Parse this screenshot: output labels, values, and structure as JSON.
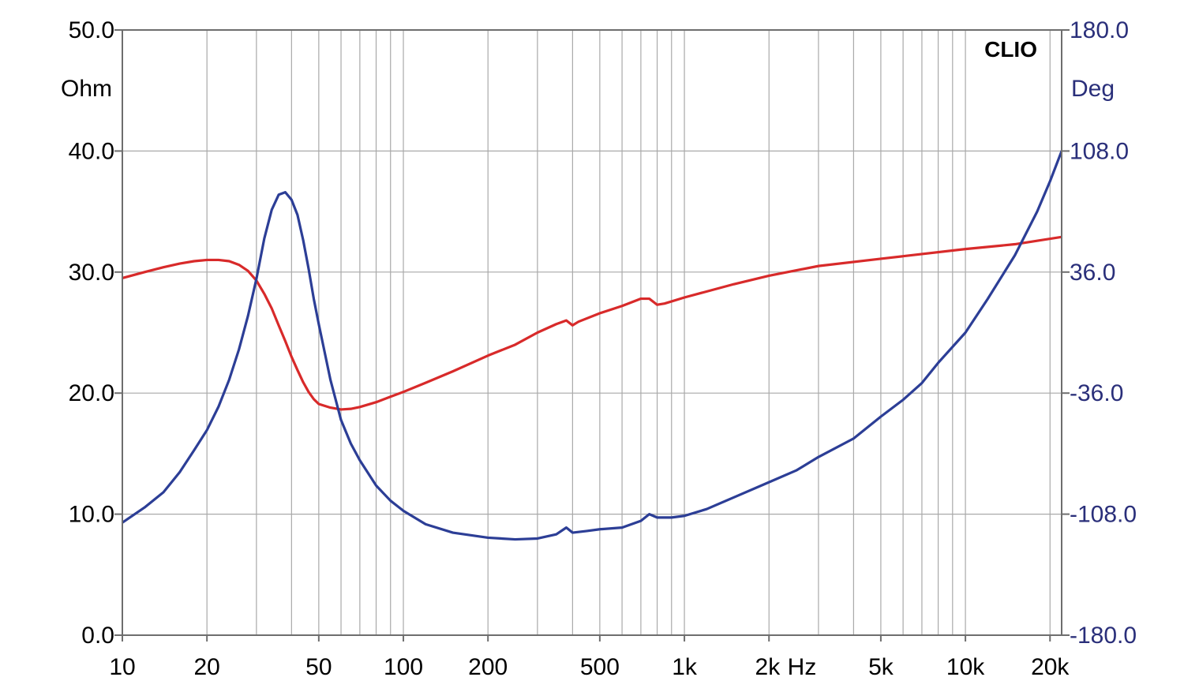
{
  "chart_data": {
    "type": "line",
    "brand_label": "CLIO",
    "x_scale": "log",
    "xlim": [
      10,
      22000
    ],
    "x_major_ticks": [
      10,
      20,
      50,
      100,
      200,
      500,
      1000,
      2000,
      5000,
      10000,
      20000
    ],
    "x_tick_labels": [
      "10",
      "20",
      "50",
      "100",
      "200",
      "500",
      "1k",
      "2k",
      "5k",
      "10k",
      "20k"
    ],
    "x_unit_label": "Hz",
    "y_left": {
      "unit_label": "Ohm",
      "lim": [
        0,
        50
      ],
      "ticks": [
        0,
        10,
        20,
        30,
        40,
        50
      ],
      "tick_labels": [
        "0.0",
        "10.0",
        "20.0",
        "30.0",
        "40.0",
        "50.0"
      ],
      "color": "#000000"
    },
    "y_right": {
      "unit_label": "Deg",
      "lim": [
        -180,
        180
      ],
      "ticks": [
        -180,
        -108,
        -36,
        36,
        108,
        180
      ],
      "tick_labels": [
        "-180.0",
        "-108.0",
        "-36.0",
        "36.0",
        "108.0",
        "180.0"
      ],
      "color": "#2a2f7a"
    },
    "grid": true,
    "series": [
      {
        "axis": "left",
        "color": "#d82a2a",
        "points": [
          [
            10,
            29.5
          ],
          [
            12,
            30.0
          ],
          [
            14,
            30.4
          ],
          [
            16,
            30.7
          ],
          [
            18,
            30.9
          ],
          [
            20,
            31.0
          ],
          [
            22,
            31.0
          ],
          [
            24,
            30.9
          ],
          [
            26,
            30.6
          ],
          [
            28,
            30.1
          ],
          [
            30,
            29.3
          ],
          [
            32,
            28.2
          ],
          [
            34,
            27.0
          ],
          [
            36,
            25.6
          ],
          [
            38,
            24.3
          ],
          [
            40,
            23.0
          ],
          [
            42,
            21.9
          ],
          [
            44,
            20.9
          ],
          [
            46,
            20.1
          ],
          [
            48,
            19.5
          ],
          [
            50,
            19.1
          ],
          [
            55,
            18.8
          ],
          [
            60,
            18.65
          ],
          [
            65,
            18.7
          ],
          [
            70,
            18.85
          ],
          [
            80,
            19.25
          ],
          [
            90,
            19.7
          ],
          [
            100,
            20.1
          ],
          [
            120,
            20.85
          ],
          [
            150,
            21.8
          ],
          [
            200,
            23.1
          ],
          [
            250,
            24.0
          ],
          [
            300,
            25.0
          ],
          [
            350,
            25.7
          ],
          [
            380,
            26.0
          ],
          [
            400,
            25.6
          ],
          [
            420,
            25.9
          ],
          [
            500,
            26.6
          ],
          [
            600,
            27.2
          ],
          [
            700,
            27.8
          ],
          [
            750,
            27.8
          ],
          [
            800,
            27.3
          ],
          [
            850,
            27.4
          ],
          [
            1000,
            27.9
          ],
          [
            1500,
            29.0
          ],
          [
            2000,
            29.7
          ],
          [
            3000,
            30.5
          ],
          [
            5000,
            31.1
          ],
          [
            10000,
            31.9
          ],
          [
            15000,
            32.3
          ],
          [
            22000,
            32.9
          ]
        ]
      },
      {
        "axis": "right",
        "color": "#2c3e96",
        "points": [
          [
            10,
            -113
          ],
          [
            12,
            -104
          ],
          [
            14,
            -95
          ],
          [
            16,
            -83
          ],
          [
            18,
            -70
          ],
          [
            20,
            -58
          ],
          [
            22,
            -44
          ],
          [
            24,
            -28
          ],
          [
            26,
            -10
          ],
          [
            28,
            10
          ],
          [
            30,
            32
          ],
          [
            32,
            56
          ],
          [
            34,
            73
          ],
          [
            36,
            82
          ],
          [
            38,
            83.5
          ],
          [
            40,
            79
          ],
          [
            42,
            70
          ],
          [
            44,
            55
          ],
          [
            46,
            38
          ],
          [
            48,
            20
          ],
          [
            50,
            5
          ],
          [
            55,
            -28
          ],
          [
            60,
            -52
          ],
          [
            65,
            -66
          ],
          [
            70,
            -76
          ],
          [
            80,
            -91
          ],
          [
            90,
            -100
          ],
          [
            100,
            -106
          ],
          [
            120,
            -114
          ],
          [
            150,
            -119
          ],
          [
            200,
            -122
          ],
          [
            250,
            -123
          ],
          [
            300,
            -122.5
          ],
          [
            350,
            -120
          ],
          [
            380,
            -116
          ],
          [
            400,
            -119
          ],
          [
            450,
            -118
          ],
          [
            500,
            -117
          ],
          [
            600,
            -116
          ],
          [
            700,
            -112
          ],
          [
            750,
            -108
          ],
          [
            800,
            -110
          ],
          [
            900,
            -110
          ],
          [
            1000,
            -109
          ],
          [
            1200,
            -105
          ],
          [
            1500,
            -98
          ],
          [
            2000,
            -89
          ],
          [
            2500,
            -82
          ],
          [
            3000,
            -74
          ],
          [
            4000,
            -63
          ],
          [
            5000,
            -50
          ],
          [
            6000,
            -40
          ],
          [
            7000,
            -30
          ],
          [
            8000,
            -18
          ],
          [
            10000,
            0
          ],
          [
            12000,
            20
          ],
          [
            15000,
            46
          ],
          [
            18000,
            72
          ],
          [
            20000,
            90
          ],
          [
            22000,
            108
          ]
        ]
      }
    ]
  }
}
